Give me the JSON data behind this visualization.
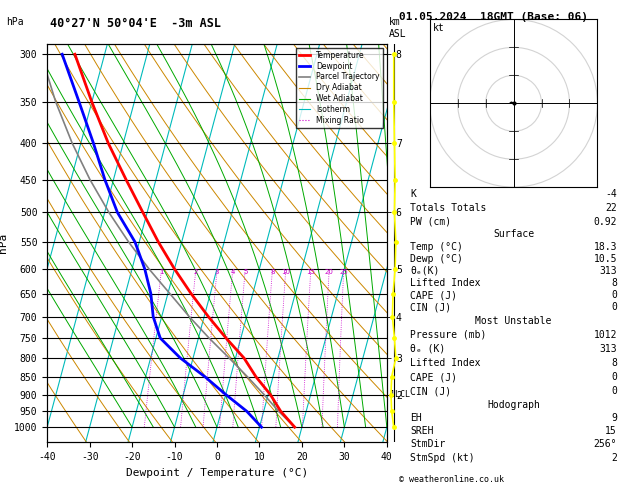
{
  "title_left": "40°27'N 50°04'E  -3m ASL",
  "title_right": "01.05.2024  18GMT (Base: 06)",
  "xlabel": "Dewpoint / Temperature (°C)",
  "ylabel_left": "hPa",
  "pressure_levels": [
    300,
    350,
    400,
    450,
    500,
    550,
    600,
    650,
    700,
    750,
    800,
    850,
    900,
    950,
    1000
  ],
  "temp_profile_p": [
    1000,
    950,
    900,
    850,
    800,
    750,
    700,
    650,
    600,
    550,
    500,
    450,
    400,
    350,
    300
  ],
  "temp_profile_t": [
    18.3,
    14.0,
    10.5,
    6.0,
    2.0,
    -3.5,
    -9.0,
    -14.5,
    -20.0,
    -25.5,
    -31.0,
    -37.0,
    -43.5,
    -50.0,
    -57.0
  ],
  "dewp_profile_p": [
    1000,
    950,
    900,
    850,
    800,
    750,
    700,
    650,
    600,
    550,
    500,
    450,
    400,
    350,
    300
  ],
  "dewp_profile_t": [
    10.5,
    6.0,
    0.0,
    -6.0,
    -13.0,
    -19.0,
    -22.0,
    -24.0,
    -27.0,
    -31.0,
    -37.0,
    -42.0,
    -47.0,
    -53.0,
    -60.0
  ],
  "parcel_profile_p": [
    1000,
    950,
    900,
    850,
    800,
    750,
    700,
    650,
    600,
    550,
    500,
    450,
    400,
    350,
    300
  ],
  "parcel_profile_t": [
    18.3,
    13.5,
    9.0,
    4.0,
    -1.5,
    -7.5,
    -13.5,
    -19.5,
    -26.0,
    -32.5,
    -39.0,
    -45.5,
    -52.0,
    -58.5,
    -65.0
  ],
  "lcl_pressure": 900,
  "temp_color": "#ff0000",
  "dewp_color": "#0000ff",
  "parcel_color": "#808080",
  "dry_adiabat_color": "#cc8800",
  "wet_adiabat_color": "#00aa00",
  "isotherm_color": "#00bbbb",
  "mixing_ratio_color": "#cc00cc",
  "K": "-4",
  "TotTot": "22",
  "PW": "0.92",
  "surf_temp": "18.3",
  "surf_dewp": "10.5",
  "surf_theta": "313",
  "surf_li": "8",
  "surf_cape": "0",
  "surf_cin": "0",
  "mu_pressure": "1012",
  "mu_theta": "313",
  "mu_li": "8",
  "mu_cape": "0",
  "mu_cin": "0",
  "hodo_eh": "9",
  "hodo_sreh": "15",
  "hodo_stmdir": "256°",
  "hodo_stmspd": "2"
}
